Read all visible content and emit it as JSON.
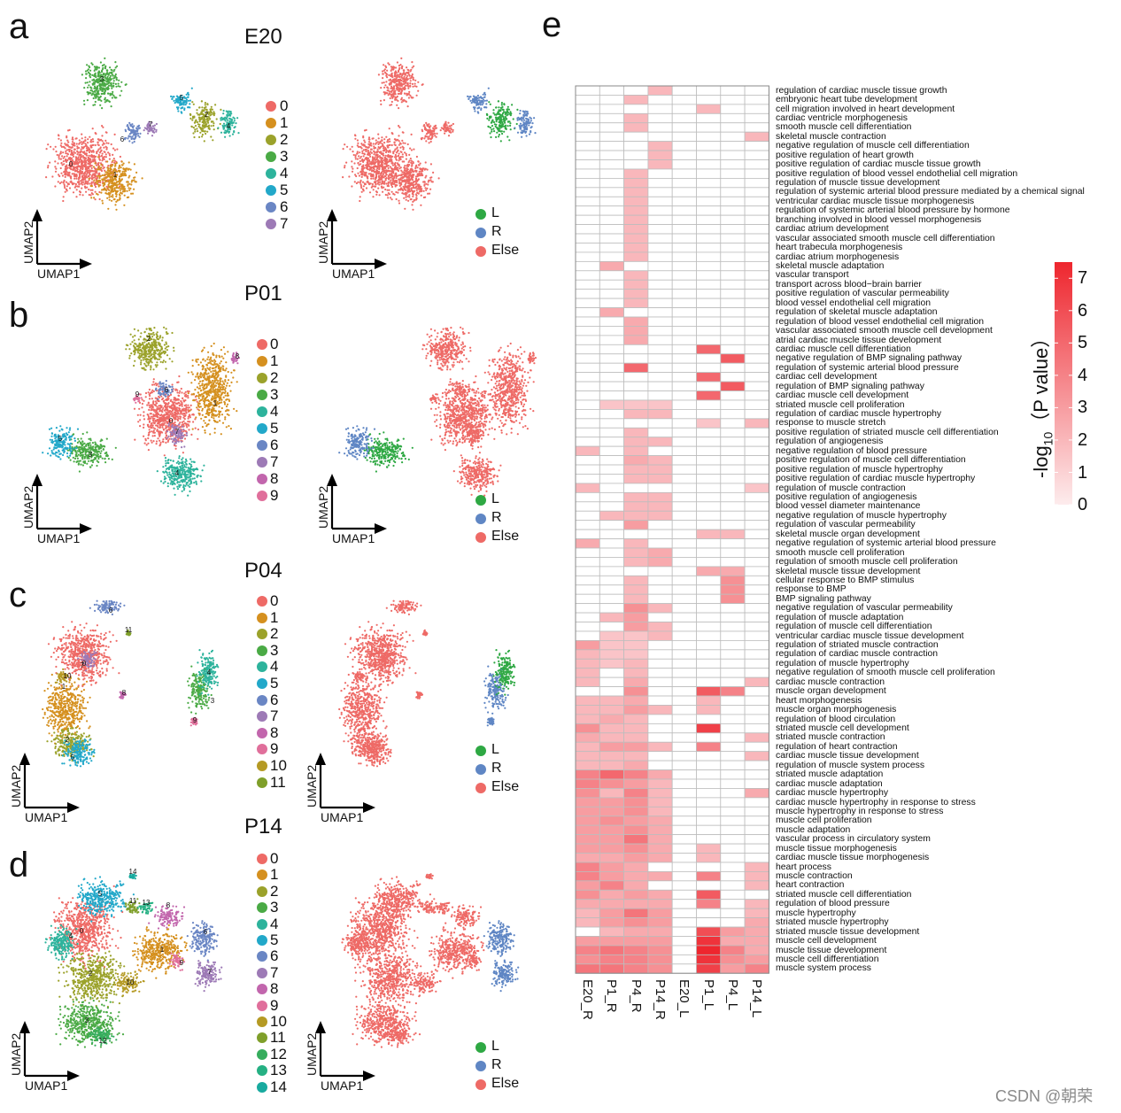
{
  "panels": {
    "a": {
      "letter": "a",
      "time": "E20",
      "clusters": [
        "0",
        "1",
        "2",
        "3",
        "4",
        "5",
        "6",
        "7"
      ]
    },
    "b": {
      "letter": "b",
      "time": "P01",
      "clusters": [
        "0",
        "1",
        "2",
        "3",
        "4",
        "5",
        "6",
        "7",
        "8",
        "9"
      ]
    },
    "c": {
      "letter": "c",
      "time": "P04",
      "clusters": [
        "0",
        "1",
        "2",
        "3",
        "4",
        "5",
        "6",
        "7",
        "8",
        "9",
        "10",
        "11"
      ]
    },
    "d": {
      "letter": "d",
      "time": "P14",
      "clusters": [
        "0",
        "1",
        "2",
        "3",
        "4",
        "5",
        "6",
        "7",
        "8",
        "9",
        "10",
        "11",
        "12",
        "13",
        "14"
      ]
    },
    "e": {
      "letter": "e"
    }
  },
  "umap_axes": {
    "x": "UMAP1",
    "y": "UMAP2"
  },
  "lr_legend": [
    "L",
    "R",
    "Else"
  ],
  "lr_colors": {
    "L": "#2ea843",
    "R": "#5f86c4",
    "Else": "#ee6a66"
  },
  "cluster_colors": [
    "#ee6a66",
    "#d5901f",
    "#9ba22b",
    "#4aaa45",
    "#2db39c",
    "#22a8c9",
    "#6a86c4",
    "#9d7ab6",
    "#c266ad",
    "#e06f9b",
    "#b59a24",
    "#7f9f2a",
    "#36ad5d",
    "#25b083",
    "#18aa9f"
  ],
  "chart_data": {
    "type": "heatmap",
    "columns": [
      "E20_R",
      "P1_R",
      "P4_R",
      "P14_R",
      "E20_L",
      "P1_L",
      "P4_L",
      "P14_L"
    ],
    "rows": [
      "regulation of cardiac muscle tissue growth",
      "embryonic heart tube development",
      "cell migration involved in heart development",
      "cardiac ventricle morphogenesis",
      "smooth muscle cell differentiation",
      "skeletal muscle contraction",
      "negative regulation of muscle cell differentiation",
      "positive regulation of heart growth",
      "positive regulation of cardiac muscle tissue growth",
      "positive regulation of blood vessel endothelial cell migration",
      "regulation of muscle tissue development",
      "regulation of systemic arterial blood pressure mediated by a chemical signal",
      "ventricular cardiac muscle tissue morphogenesis",
      "regulation of systemic arterial blood pressure by hormone",
      "branching involved in blood vessel morphogenesis",
      "cardiac atrium development",
      "vascular associated smooth muscle cell differentiation",
      "heart trabecula morphogenesis",
      "cardiac atrium morphogenesis",
      "skeletal muscle adaptation",
      "vascular transport",
      "transport across blood−brain barrier",
      "positive regulation of vascular permeability",
      "blood vessel endothelial cell migration",
      "regulation of skeletal muscle adaptation",
      "regulation of blood vessel endothelial cell migration",
      "vascular associated smooth muscle cell development",
      "atrial cardiac muscle tissue development",
      "cardiac muscle cell differentiation",
      "negative regulation of BMP signaling pathway",
      "regulation of systemic arterial blood pressure",
      "cardiac cell development",
      "regulation of BMP signaling pathway",
      "cardiac muscle cell development",
      "striated muscle cell proliferation",
      "regulation of cardiac muscle hypertrophy",
      "response to muscle stretch",
      "positive regulation of striated muscle cell differentiation",
      "regulation of angiogenesis",
      "negative regulation of blood pressure",
      "positive regulation of muscle cell differentiation",
      "positive regulation of muscle hypertrophy",
      "positive regulation of cardiac muscle hypertrophy",
      "regulation of muscle contraction",
      "positive regulation of angiogenesis",
      "blood vessel diameter maintenance",
      "negative regulation of muscle hypertrophy",
      "regulation of vascular permeability",
      "skeletal muscle organ development",
      "negative regulation of systemic arterial blood pressure",
      "smooth muscle cell proliferation",
      "regulation of smooth muscle cell proliferation",
      "skeletal muscle tissue development",
      "cellular response to BMP stimulus",
      "response to BMP",
      "BMP signaling pathway",
      "negative regulation of vascular permeability",
      "regulation of muscle adaptation",
      "regulation of muscle cell differentiation",
      "ventricular cardiac muscle tissue development",
      "regulation of striated muscle contraction",
      "regulation of cardiac muscle contraction",
      "regulation of muscle hypertrophy",
      "negative regulation of smooth muscle cell proliferation",
      "cardiac muscle contraction",
      "muscle organ development",
      "heart morphogenesis",
      "muscle organ morphogenesis",
      "regulation of blood circulation",
      "striated muscle cell development",
      "striated muscle contraction",
      "regulation of heart contraction",
      "cardiac muscle tissue development",
      "regulation of muscle system process",
      "striated muscle adaptation",
      "cardiac muscle adaptation",
      "cardiac muscle hypertrophy",
      "cardiac muscle hypertrophy in response to stress",
      "muscle hypertrophy in response to stress",
      "muscle cell proliferation",
      "muscle adaptation",
      "vascular process in circulatory system",
      "muscle tissue morphogenesis",
      "cardiac muscle tissue morphogenesis",
      "heart process",
      "muscle contraction",
      "heart contraction",
      "striated muscle cell differentiation",
      "regulation of blood pressure",
      "muscle hypertrophy",
      "striated muscle hypertrophy",
      "striated muscle tissue development",
      "muscle cell development",
      "muscle tissue development",
      "muscle cell differentiation",
      "muscle system process"
    ],
    "values": [
      [
        0,
        0,
        0,
        2,
        0,
        0,
        0,
        0
      ],
      [
        0,
        0,
        2,
        0,
        0,
        0,
        0,
        0
      ],
      [
        0,
        0,
        0,
        0,
        0,
        2,
        0,
        0
      ],
      [
        0,
        0,
        2,
        0,
        0,
        0,
        0,
        0
      ],
      [
        0,
        0,
        2,
        0,
        0,
        0,
        0,
        0
      ],
      [
        0,
        0,
        0,
        0,
        0,
        0,
        0,
        2
      ],
      [
        0,
        0,
        0,
        2,
        0,
        0,
        0,
        0
      ],
      [
        0,
        0,
        0,
        2,
        0,
        0,
        0,
        0
      ],
      [
        0,
        0,
        0,
        2,
        0,
        0,
        0,
        0
      ],
      [
        0,
        0,
        2,
        0,
        0,
        0,
        0,
        0
      ],
      [
        0,
        0,
        2,
        0,
        0,
        0,
        0,
        0
      ],
      [
        0,
        0,
        2,
        0,
        0,
        0,
        0,
        0
      ],
      [
        0,
        0,
        2,
        0,
        0,
        0,
        0,
        0
      ],
      [
        0,
        0,
        2,
        0,
        0,
        0,
        0,
        0
      ],
      [
        0,
        0,
        2,
        0,
        0,
        0,
        0,
        0
      ],
      [
        0,
        0,
        2,
        0,
        0,
        0,
        0,
        0
      ],
      [
        0,
        0,
        2,
        0,
        0,
        0,
        0,
        0
      ],
      [
        0,
        0,
        2,
        0,
        0,
        0,
        0,
        0
      ],
      [
        0,
        0,
        2,
        0,
        0,
        0,
        0,
        0
      ],
      [
        0,
        2.5,
        0,
        0,
        0,
        0,
        0,
        0
      ],
      [
        0,
        0,
        2,
        0,
        0,
        0,
        0,
        0
      ],
      [
        0,
        0,
        2,
        0,
        0,
        0,
        0,
        0
      ],
      [
        0,
        0,
        2,
        0,
        0,
        0,
        0,
        0
      ],
      [
        0,
        0,
        2,
        0,
        0,
        0,
        0,
        0
      ],
      [
        0,
        2.5,
        0,
        0,
        0,
        0,
        0,
        0
      ],
      [
        0,
        0,
        2.5,
        0,
        0,
        0,
        0,
        0
      ],
      [
        0,
        0,
        2.5,
        0,
        0,
        0,
        0,
        0
      ],
      [
        0,
        0,
        2.5,
        0,
        0,
        0,
        0,
        0
      ],
      [
        0,
        0,
        0,
        0,
        0,
        5,
        0,
        0
      ],
      [
        0,
        0,
        0,
        0,
        0,
        0,
        5.5,
        0
      ],
      [
        0,
        0,
        5,
        0,
        0,
        0,
        0,
        0
      ],
      [
        0,
        0,
        0,
        0,
        0,
        5,
        0,
        0
      ],
      [
        0,
        0,
        0,
        0,
        0,
        0,
        5.5,
        0
      ],
      [
        0,
        0,
        0,
        0,
        0,
        5,
        0,
        0
      ],
      [
        0,
        1.5,
        1.5,
        1.5,
        0,
        0,
        0,
        0
      ],
      [
        0,
        0,
        2,
        2,
        0,
        0,
        0,
        0
      ],
      [
        0,
        0,
        0,
        0,
        0,
        1.5,
        0,
        2
      ],
      [
        0,
        0,
        2,
        0,
        0,
        0,
        0,
        0
      ],
      [
        0,
        0,
        2,
        2,
        0,
        0,
        0,
        0
      ],
      [
        2,
        0,
        2,
        0,
        0,
        0,
        0,
        0
      ],
      [
        0,
        0,
        2.5,
        2,
        0,
        0,
        0,
        0
      ],
      [
        0,
        0,
        2,
        2,
        0,
        0,
        0,
        0
      ],
      [
        0,
        0,
        2,
        2,
        0,
        0,
        0,
        0
      ],
      [
        2,
        0,
        0,
        0,
        0,
        0,
        0,
        1.5
      ],
      [
        0,
        0,
        2,
        2,
        0,
        0,
        0,
        0
      ],
      [
        0,
        0,
        2,
        2,
        0,
        0,
        0,
        0
      ],
      [
        0,
        2,
        2,
        2,
        0,
        0,
        0,
        0
      ],
      [
        0,
        0,
        3,
        0,
        0,
        0,
        0,
        0
      ],
      [
        0,
        0,
        0,
        0,
        0,
        2,
        2,
        0
      ],
      [
        2.5,
        0,
        2,
        0,
        0,
        0,
        0,
        0
      ],
      [
        0,
        0,
        2,
        2.5,
        0,
        0,
        0,
        0
      ],
      [
        0,
        0,
        2,
        2.5,
        0,
        0,
        0,
        0
      ],
      [
        0,
        0,
        0,
        0,
        0,
        2.5,
        2.5,
        0
      ],
      [
        0,
        0,
        2,
        0,
        0,
        0,
        3.5,
        0
      ],
      [
        0,
        0,
        2,
        0,
        0,
        0,
        3.5,
        0
      ],
      [
        0,
        0,
        2,
        0,
        0,
        0,
        3.5,
        0
      ],
      [
        0,
        0,
        3.5,
        2,
        0,
        0,
        0,
        0
      ],
      [
        0,
        2,
        3,
        0,
        0,
        0,
        0,
        0
      ],
      [
        0,
        0,
        3,
        2,
        0,
        0,
        0,
        0
      ],
      [
        0,
        1.5,
        1.5,
        2,
        0,
        0,
        0,
        0
      ],
      [
        3,
        1.5,
        1.5,
        0,
        0,
        0,
        0,
        0
      ],
      [
        2,
        1.5,
        1.5,
        0,
        0,
        0,
        0,
        0
      ],
      [
        2,
        1.5,
        2,
        0,
        0,
        0,
        0,
        0
      ],
      [
        2,
        0,
        2,
        0,
        0,
        0,
        0,
        0
      ],
      [
        2,
        0,
        2.5,
        0,
        0,
        0,
        0,
        2
      ],
      [
        0,
        0,
        3.5,
        0,
        0,
        5.5,
        4,
        0
      ],
      [
        2,
        2,
        2.5,
        0,
        0,
        2,
        0,
        0
      ],
      [
        2,
        2,
        3,
        2,
        0,
        2,
        0,
        0
      ],
      [
        2,
        2.5,
        2,
        0,
        0,
        0,
        0,
        0
      ],
      [
        3.5,
        2,
        2,
        0,
        0,
        6.5,
        0,
        0
      ],
      [
        2.5,
        2,
        2,
        0,
        0,
        0,
        0,
        2
      ],
      [
        2,
        3,
        3,
        2,
        0,
        4,
        0,
        0
      ],
      [
        2,
        2,
        2,
        0,
        0,
        0,
        0,
        2
      ],
      [
        2,
        2,
        2.5,
        0,
        0,
        0,
        0,
        0
      ],
      [
        4,
        5,
        4,
        2.5,
        0,
        0,
        0,
        0
      ],
      [
        4,
        3.5,
        3,
        2,
        0,
        0,
        0,
        0
      ],
      [
        3.5,
        2,
        4,
        2,
        0,
        0,
        0,
        2.5
      ],
      [
        3,
        3,
        3.5,
        2,
        0,
        0,
        0,
        0
      ],
      [
        3,
        3,
        3.5,
        2,
        0,
        0,
        0,
        0
      ],
      [
        3,
        3.5,
        3,
        2.5,
        0,
        0,
        0,
        0
      ],
      [
        3,
        3,
        3.5,
        2.5,
        0,
        0,
        0,
        0
      ],
      [
        3,
        3,
        4.5,
        2.5,
        0,
        0,
        0,
        0
      ],
      [
        3,
        3,
        3.5,
        2.5,
        0,
        2,
        0,
        0
      ],
      [
        2.5,
        2.5,
        3,
        2.5,
        0,
        2,
        0,
        0
      ],
      [
        4,
        3,
        2.5,
        0,
        0,
        0,
        0,
        2
      ],
      [
        4,
        3,
        2.5,
        2.5,
        0,
        4,
        0,
        2
      ],
      [
        3,
        4,
        2.5,
        0,
        0,
        0,
        0,
        2
      ],
      [
        3.5,
        2.5,
        3,
        2.5,
        0,
        5.5,
        0,
        0
      ],
      [
        2.5,
        2.5,
        2.5,
        2.5,
        0,
        4,
        0,
        2
      ],
      [
        2,
        3,
        4.5,
        3,
        0,
        0,
        0,
        2
      ],
      [
        2,
        3,
        3.5,
        3,
        0,
        0,
        0,
        2.5
      ],
      [
        0,
        2,
        2.5,
        2.5,
        0,
        6,
        3,
        2.5
      ],
      [
        3,
        3,
        3,
        3,
        0,
        7,
        2.5,
        2.5
      ],
      [
        4,
        4.5,
        4,
        3.5,
        0,
        7.5,
        4,
        2.5
      ],
      [
        3.5,
        4,
        4,
        3.5,
        0,
        7,
        3.5,
        3
      ],
      [
        4.5,
        4.5,
        4,
        3.5,
        0,
        6.5,
        3,
        4
      ]
    ],
    "colorbar": {
      "label": "-log10（P value）",
      "min": 0,
      "max": 7.5,
      "ticks": [
        "0",
        "1",
        "2",
        "3",
        "4",
        "5",
        "6",
        "7"
      ]
    }
  },
  "colorbar_title": {
    "prefix": "-log",
    "sub": "10",
    "suffix": "（P value）"
  },
  "watermark": "CSDN @朝荣"
}
